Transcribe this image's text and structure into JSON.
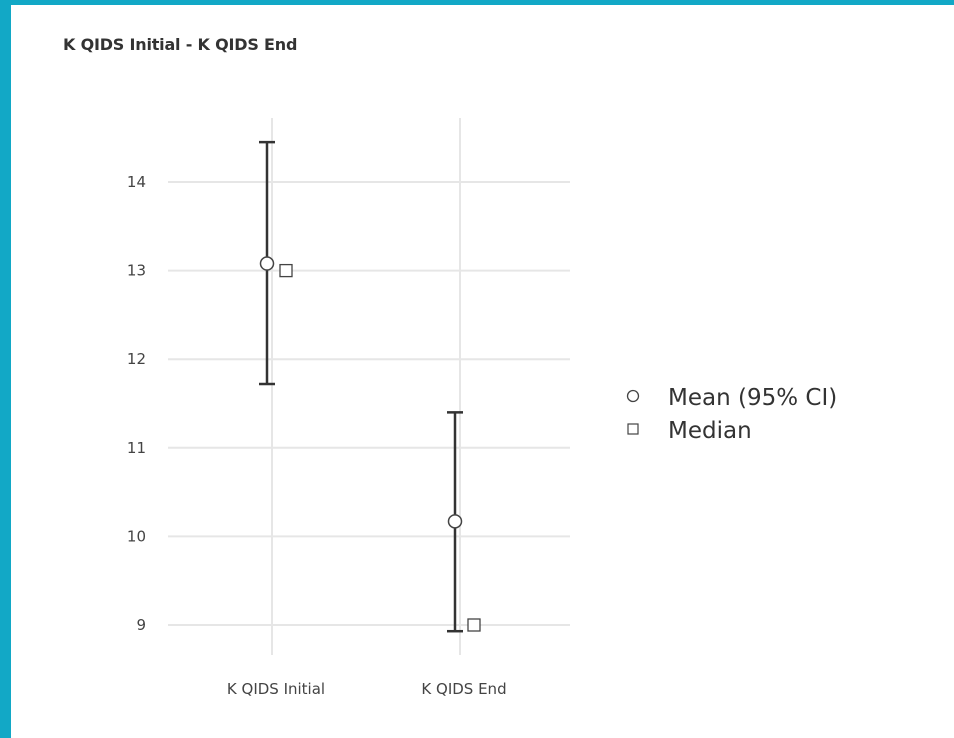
{
  "colors": {
    "frame": "#12a8c6",
    "grid": "#e6e6e6",
    "errorbar": "#333333",
    "marker_fill": "#ffffff",
    "marker_stroke": "#444444"
  },
  "chart_data": {
    "type": "error-bar",
    "title": "K QIDS Initial - K QIDS End",
    "xlabel": "",
    "ylabel": "",
    "categories": [
      "K QIDS Initial",
      "K QIDS End"
    ],
    "ylim": [
      8.75,
      14.75
    ],
    "yticks": [
      "9",
      "10",
      "11",
      "12",
      "13",
      "14"
    ],
    "grid": true,
    "legend_position": "right",
    "series": [
      {
        "name": "Mean (95% CI)",
        "marker": "circle",
        "values": [
          13.08,
          10.17
        ],
        "ci_lower": [
          11.72,
          8.93
        ],
        "ci_upper": [
          14.45,
          11.4
        ]
      },
      {
        "name": "Median",
        "marker": "square",
        "values": [
          13,
          9
        ]
      }
    ]
  }
}
